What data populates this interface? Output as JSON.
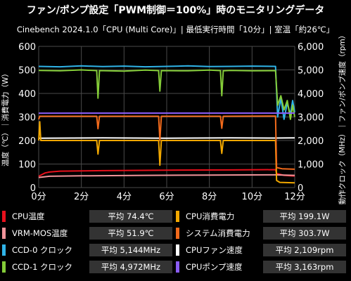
{
  "header": {
    "title": "ファン/ポンプ設定「PWM制御＝100%」時のモニタリングデータ",
    "subtitle": "Cinebench 2024.1.0「CPU (Multi Core)」| 最低実行時間「10分」| 室温「約26℃」"
  },
  "chart_data": {
    "type": "line",
    "y_left_label": "温度（℃）｜消費電力（W）",
    "y_right_label": "動作クロック（MHz）｜ファン/ポンプ速度（rpm）",
    "x_ticks": [
      "0分",
      "2分",
      "4分",
      "6分",
      "8分",
      "10分",
      "12分"
    ],
    "y_left_ticks": [
      "0",
      "100",
      "200",
      "300",
      "400",
      "500",
      "600"
    ],
    "y_right_ticks": [
      "0",
      "1,000",
      "2,000",
      "3,000",
      "4,000",
      "5,000",
      "6,000"
    ],
    "xlim": [
      0,
      12
    ],
    "ylim_left": [
      0,
      600
    ],
    "ylim_right": [
      0,
      6000
    ],
    "grid": true,
    "series": [
      {
        "name": "CPU温度",
        "axis": "left",
        "color": "#e8101c",
        "points": [
          [
            0,
            48
          ],
          [
            0.3,
            62
          ],
          [
            0.5,
            66
          ],
          [
            1,
            70
          ],
          [
            3,
            72
          ],
          [
            6,
            74
          ],
          [
            9,
            75
          ],
          [
            11.1,
            76
          ],
          [
            11.15,
            60
          ],
          [
            11.5,
            52
          ],
          [
            12,
            49
          ]
        ]
      },
      {
        "name": "VRM-MOS温度",
        "axis": "left",
        "color": "#f1949a",
        "points": [
          [
            0,
            43
          ],
          [
            0.5,
            48
          ],
          [
            2,
            50
          ],
          [
            5,
            52
          ],
          [
            8,
            53
          ],
          [
            11.1,
            54
          ],
          [
            11.5,
            53
          ],
          [
            12,
            52
          ]
        ]
      },
      {
        "name": "CPU消費電力",
        "axis": "left",
        "color": "#f2a800",
        "points": [
          [
            0,
            200
          ],
          [
            0.05,
            280
          ],
          [
            0.1,
            200
          ],
          [
            2.72,
            200
          ],
          [
            2.78,
            142
          ],
          [
            2.85,
            200
          ],
          [
            5.62,
            200
          ],
          [
            5.68,
            95
          ],
          [
            5.75,
            200
          ],
          [
            8.52,
            200
          ],
          [
            8.58,
            145
          ],
          [
            8.65,
            200
          ],
          [
            11.1,
            200
          ],
          [
            11.15,
            30
          ],
          [
            11.3,
            22
          ],
          [
            12,
            20
          ]
        ]
      },
      {
        "name": "システム消費電力",
        "axis": "left",
        "color": "#f26a1b",
        "points": [
          [
            0,
            290
          ],
          [
            0.05,
            303
          ],
          [
            2.72,
            303
          ],
          [
            2.78,
            250
          ],
          [
            2.85,
            303
          ],
          [
            5.62,
            303
          ],
          [
            5.68,
            200
          ],
          [
            5.75,
            303
          ],
          [
            8.52,
            303
          ],
          [
            8.58,
            252
          ],
          [
            8.65,
            303
          ],
          [
            11.1,
            304
          ],
          [
            11.15,
            85
          ],
          [
            11.4,
            80
          ],
          [
            12,
            78
          ]
        ]
      },
      {
        "name": "CCD-0 クロック",
        "axis": "right",
        "color": "#30b4e8",
        "points": [
          [
            0,
            5150
          ],
          [
            1,
            5130
          ],
          [
            2,
            5170
          ],
          [
            3,
            5140
          ],
          [
            4,
            5160
          ],
          [
            5,
            5130
          ],
          [
            6,
            5150
          ],
          [
            7,
            5170
          ],
          [
            8,
            5140
          ],
          [
            9,
            5150
          ],
          [
            10,
            5160
          ],
          [
            11.1,
            5150
          ],
          [
            11.2,
            3000
          ],
          [
            11.35,
            3800
          ],
          [
            11.5,
            2900
          ],
          [
            11.65,
            3600
          ],
          [
            11.8,
            3100
          ],
          [
            11.9,
            3700
          ],
          [
            12,
            3200
          ]
        ]
      },
      {
        "name": "CCD-1 クロック",
        "axis": "right",
        "color": "#84cc38",
        "points": [
          [
            0,
            4980
          ],
          [
            1,
            4960
          ],
          [
            2,
            5000
          ],
          [
            2.72,
            4970
          ],
          [
            2.78,
            3800
          ],
          [
            2.85,
            4970
          ],
          [
            4,
            4950
          ],
          [
            5,
            4990
          ],
          [
            5.62,
            4970
          ],
          [
            5.68,
            4100
          ],
          [
            5.75,
            4970
          ],
          [
            7,
            4960
          ],
          [
            8,
            4990
          ],
          [
            8.52,
            4970
          ],
          [
            8.58,
            3900
          ],
          [
            8.65,
            4960
          ],
          [
            9,
            4980
          ],
          [
            10,
            4960
          ],
          [
            11.1,
            4970
          ],
          [
            11.2,
            3500
          ],
          [
            11.35,
            3900
          ],
          [
            11.5,
            3300
          ],
          [
            11.65,
            3700
          ],
          [
            11.8,
            2900
          ],
          [
            11.9,
            3500
          ],
          [
            12,
            3000
          ]
        ]
      },
      {
        "name": "CPUファン速度",
        "axis": "right",
        "color": "#ffffff",
        "points": [
          [
            0,
            2100
          ],
          [
            3,
            2110
          ],
          [
            6,
            2100
          ],
          [
            9,
            2110
          ],
          [
            11.1,
            2105
          ],
          [
            11.5,
            2108
          ],
          [
            12,
            2110
          ]
        ]
      },
      {
        "name": "CPUポンプ速度",
        "axis": "right",
        "color": "#8a5cf5",
        "points": [
          [
            0,
            3160
          ],
          [
            6,
            3165
          ],
          [
            11.1,
            3163
          ],
          [
            12,
            3163
          ]
        ]
      }
    ]
  },
  "legend": [
    {
      "name": "CPU温度",
      "value": "平均 74.4℃",
      "color": "#e8101c"
    },
    {
      "name": "CPU消費電力",
      "value": "平均 199.1W",
      "color": "#f2a800"
    },
    {
      "name": "VRM-MOS温度",
      "value": "平均 51.9℃",
      "color": "#f1949a"
    },
    {
      "name": "システム消費電力",
      "value": "平均 303.7W",
      "color": "#f26a1b"
    },
    {
      "name": "CCD-0 クロック",
      "value": "平均 5,144MHz",
      "color": "#30b4e8"
    },
    {
      "name": "CPUファン速度",
      "value": "平均 2,109rpm",
      "color": "#ffffff"
    },
    {
      "name": "CCD-1 クロック",
      "value": "平均 4,972MHz",
      "color": "#84cc38"
    },
    {
      "name": "CPUポンプ速度",
      "value": "平均 3,163rpm",
      "color": "#8a5cf5"
    }
  ]
}
